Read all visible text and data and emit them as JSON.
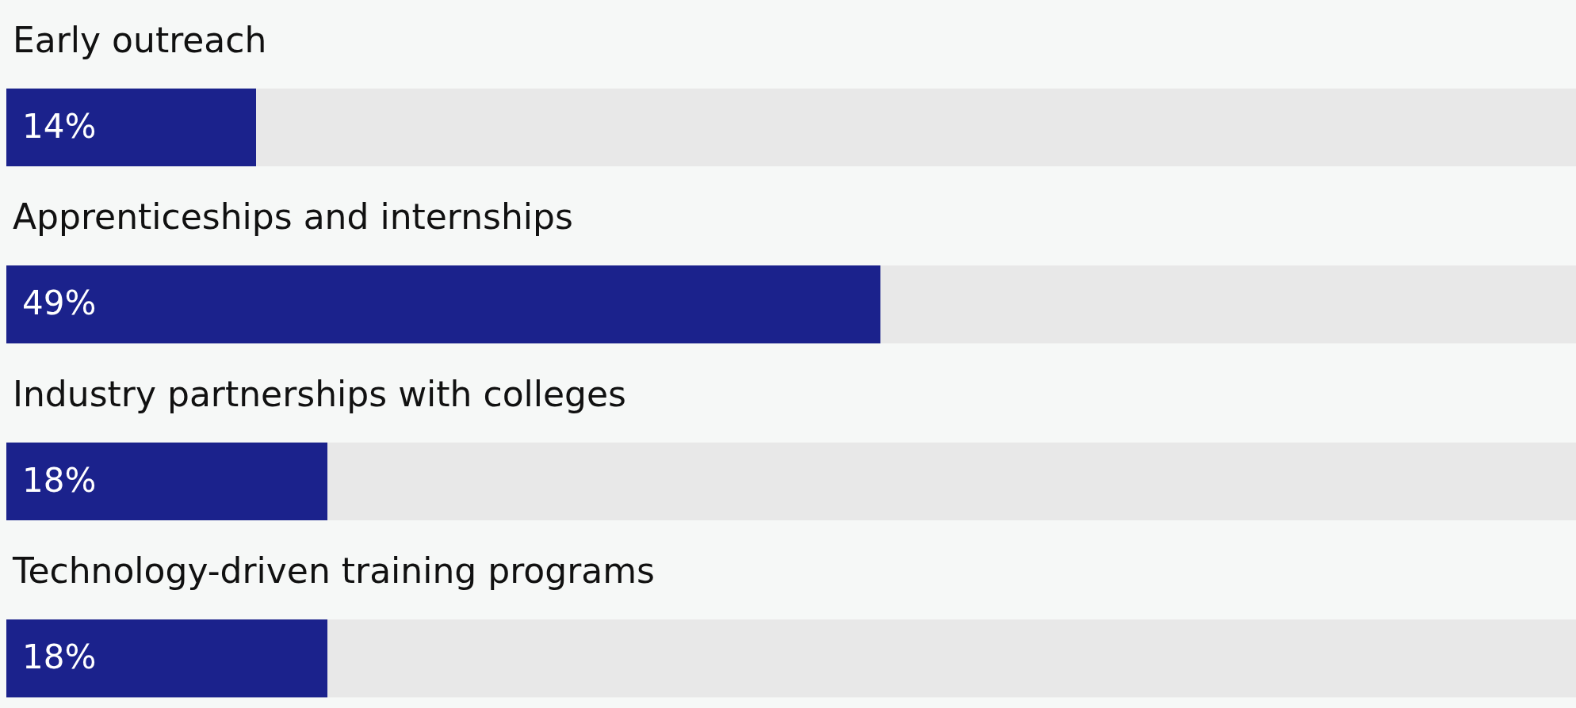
{
  "chart_data": {
    "type": "bar",
    "orientation": "horizontal",
    "categories": [
      "Early outreach",
      "Apprenticeships and internships",
      "Industry partnerships with colleges",
      "Technology-driven training programs"
    ],
    "values": [
      14,
      49,
      18,
      18
    ],
    "value_labels": [
      "14%",
      "49%",
      "18%",
      "18%"
    ],
    "color": "#1b228c",
    "xlim": [
      0,
      88
    ]
  }
}
